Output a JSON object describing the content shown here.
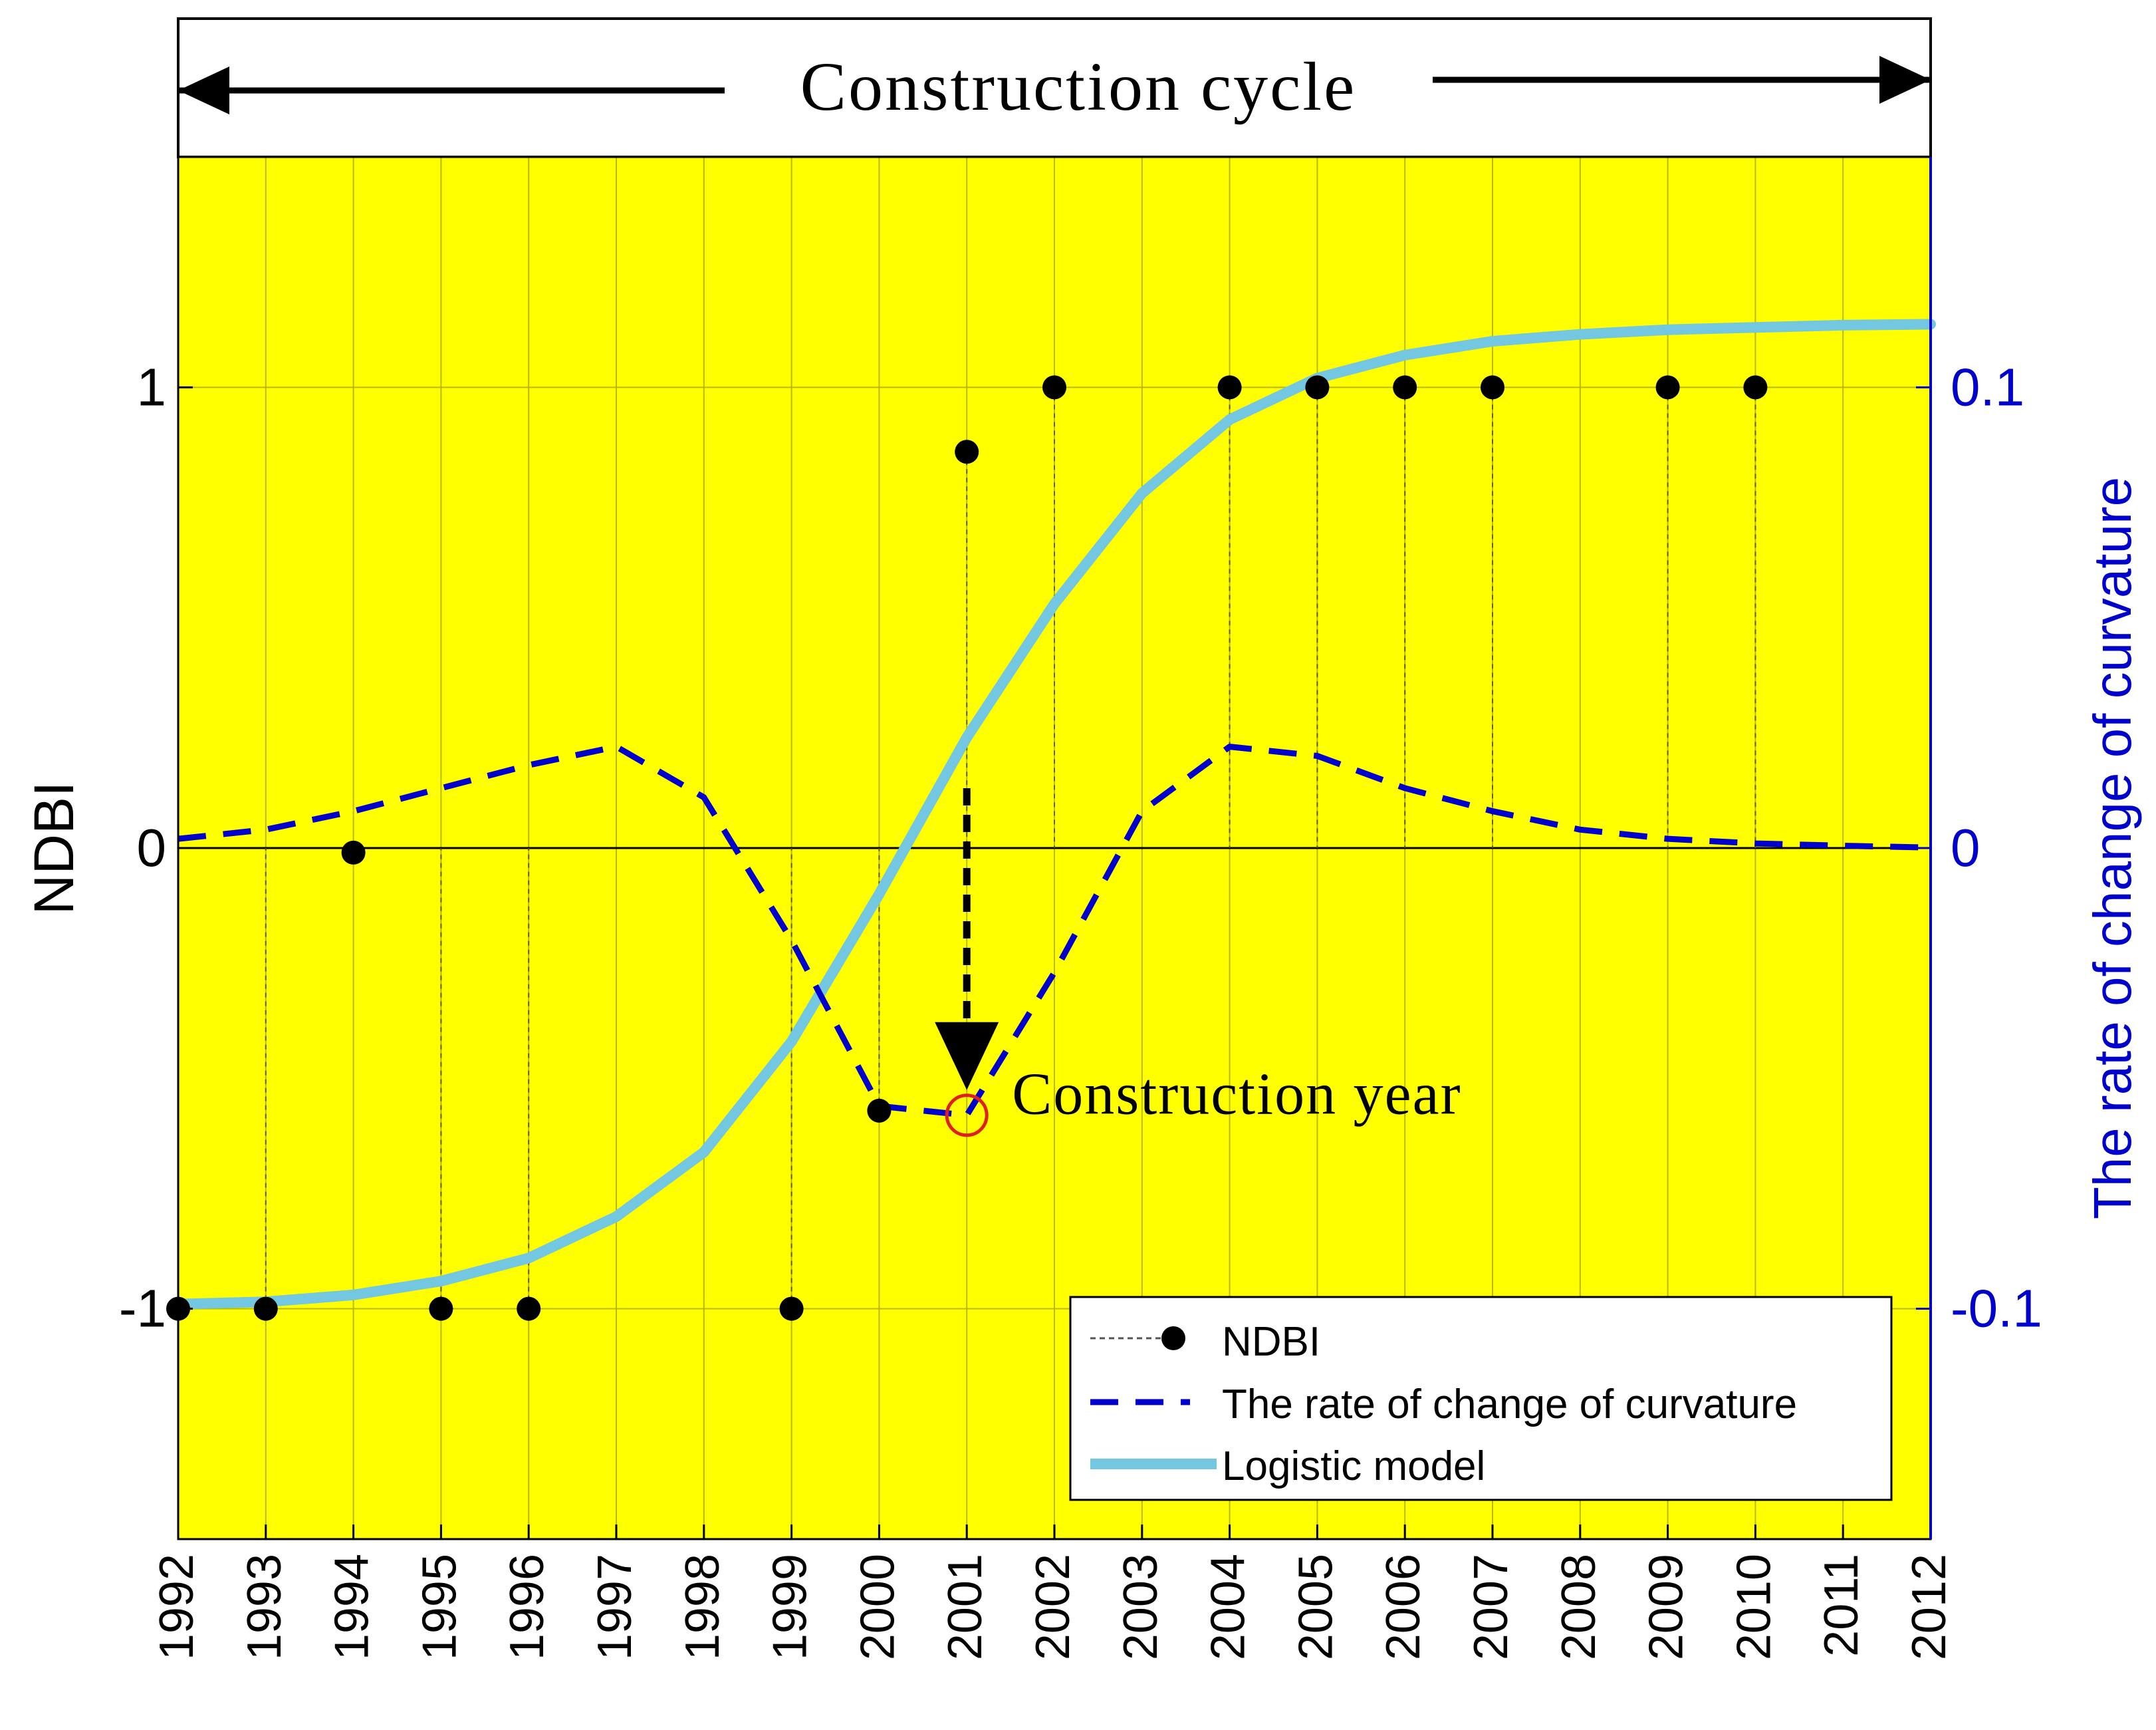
{
  "chart_data": {
    "type": "line",
    "banner": "Construction cycle",
    "annotation": "Construction year",
    "xlabel": "",
    "ylabel_left": "NDBI",
    "ylabel_right": "The rate of change of curvature",
    "x": [
      1992,
      1993,
      1994,
      1995,
      1996,
      1997,
      1998,
      1999,
      2000,
      2001,
      2002,
      2003,
      2004,
      2005,
      2006,
      2007,
      2008,
      2009,
      2010,
      2011,
      2012
    ],
    "x_tick_labels": [
      "1992",
      "1993",
      "1994",
      "1995",
      "1996",
      "1997",
      "1998",
      "1999",
      "2000",
      "2001",
      "2002",
      "2003",
      "2004",
      "2005",
      "2006",
      "2007",
      "2008",
      "2009",
      "2010",
      "2011",
      "2012"
    ],
    "xlim": [
      1992,
      2012
    ],
    "ylim_left": [
      -1.5,
      1.5
    ],
    "ylim_right": [
      -0.15,
      0.15
    ],
    "left_ticks": [
      -1,
      0,
      1
    ],
    "left_tick_labels": [
      "-1",
      "0",
      "1"
    ],
    "right_ticks": [
      -0.1,
      0,
      0.1
    ],
    "right_tick_labels": [
      "-0.1",
      "0",
      "0.1"
    ],
    "construction_year": 2001,
    "series": [
      {
        "name": "NDBI",
        "axis": "left",
        "style": "markers",
        "color": "#000000",
        "x": [
          1992,
          1993,
          1994,
          1995,
          1996,
          1999,
          2000,
          2001,
          2002,
          2004,
          2005,
          2006,
          2007,
          2009,
          2010
        ],
        "values": [
          -1,
          -1,
          -0.01,
          -1,
          -1,
          -1,
          -0.57,
          0.86,
          1,
          1,
          1,
          1,
          1,
          1,
          1
        ]
      },
      {
        "name": "The rate of change of curvature",
        "axis": "right",
        "style": "dashed",
        "color": "#0000cc",
        "x": [
          1992,
          1993,
          1994,
          1995,
          1996,
          1997,
          1998,
          1999,
          2000,
          2001,
          2002,
          2003,
          2004,
          2005,
          2006,
          2007,
          2008,
          2009,
          2010,
          2011,
          2012
        ],
        "values": [
          0.002,
          0.004,
          0.008,
          0.013,
          0.018,
          0.022,
          0.011,
          -0.02,
          -0.056,
          -0.058,
          -0.027,
          0.008,
          0.022,
          0.02,
          0.013,
          0.008,
          0.004,
          0.002,
          0.001,
          0.0005,
          0.0001
        ]
      },
      {
        "name": "Logistic model",
        "axis": "left",
        "style": "solid",
        "color": "#73c7e0",
        "x": [
          1992,
          1993,
          1994,
          1995,
          1996,
          1997,
          1998,
          1999,
          2000,
          2001,
          2002,
          2003,
          2004,
          2005,
          2006,
          2007,
          2008,
          2009,
          2010,
          2011,
          2012
        ],
        "values": [
          -0.99,
          -0.985,
          -0.97,
          -0.94,
          -0.89,
          -0.8,
          -0.66,
          -0.42,
          -0.1,
          0.24,
          0.53,
          0.77,
          0.93,
          1.02,
          1.07,
          1.1,
          1.115,
          1.125,
          1.13,
          1.135,
          1.137
        ]
      }
    ],
    "legend": [
      {
        "label": "NDBI"
      },
      {
        "label": "The rate of change of curvature"
      },
      {
        "label": "Logistic model"
      }
    ],
    "legend_position": "bottom-right",
    "grid": true,
    "colors": {
      "background": "#ffff00",
      "banner_background": "#ffffff",
      "gridline": "#b9b900",
      "right_axis": "#0000cc",
      "highlight": "#e02020"
    }
  }
}
